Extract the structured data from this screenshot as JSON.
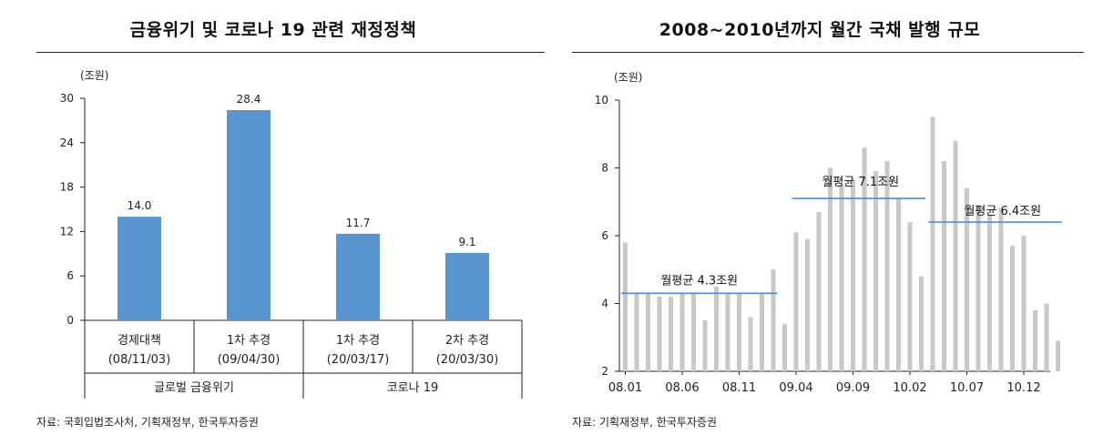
{
  "left": {
    "title": "금융위기 및 코로나 19 관련 재정정책",
    "source": "자료: 국회입법조사처, 기획재정부, 한국투자증권",
    "unit": "(조원)",
    "bar_color": "#5b95d0",
    "chart_data": {
      "type": "bar",
      "categories": [
        {
          "line1": "경제대책",
          "line2": "(08/11/03)"
        },
        {
          "line1": "1차 추경",
          "line2": "(09/04/30)"
        },
        {
          "line1": "1차 추경",
          "line2": "(20/03/17)"
        },
        {
          "line1": "2차 추경",
          "line2": "(20/03/30)"
        }
      ],
      "values": [
        14.0,
        28.4,
        11.7,
        9.1
      ],
      "value_labels": [
        "14.0",
        "28.4",
        "11.7",
        "9.1"
      ],
      "groups": [
        {
          "label": "글로벌 금융위기",
          "span": [
            0,
            1
          ]
        },
        {
          "label": "코로나 19",
          "span": [
            2,
            3
          ]
        }
      ],
      "ylim": [
        0,
        30
      ],
      "yticks": [
        "0",
        "6",
        "12",
        "18",
        "24",
        "30"
      ],
      "grid": false
    }
  },
  "right": {
    "title": "2008~2010년까지 월간 국채 발행 규모",
    "source": "자료: 기획재정부, 한국투자증권",
    "unit": "(조원)",
    "bar_color": "#c8c8c8",
    "avg_color": "#4a8ed6",
    "chart_data": {
      "type": "bar",
      "values": [
        5.8,
        4.3,
        4.3,
        4.2,
        4.2,
        4.3,
        4.3,
        3.5,
        4.5,
        4.3,
        4.3,
        3.6,
        4.3,
        5.0,
        3.4,
        6.1,
        5.9,
        6.7,
        8.0,
        7.5,
        7.6,
        8.6,
        7.9,
        8.2,
        7.1,
        6.4,
        4.8,
        9.5,
        8.2,
        8.8,
        7.4,
        6.9,
        6.6,
        6.8,
        5.7,
        6.0,
        3.8,
        4.0,
        2.9
      ],
      "xticks": [
        "08.01",
        "08.06",
        "08.11",
        "09.04",
        "09.09",
        "10.02",
        "10.07",
        "10.12"
      ],
      "ylim": [
        2,
        10
      ],
      "yticks": [
        "2",
        "4",
        "6",
        "8",
        "10"
      ],
      "averages": [
        {
          "label": "월평균 4.3조원",
          "value": 4.3,
          "range": [
            0,
            13
          ]
        },
        {
          "label": "월평균 7.1조원",
          "value": 7.1,
          "range": [
            15,
            26
          ]
        },
        {
          "label": "월평균 6.4조원",
          "value": 6.4,
          "range": [
            27,
            38
          ]
        }
      ],
      "grid": false
    }
  }
}
